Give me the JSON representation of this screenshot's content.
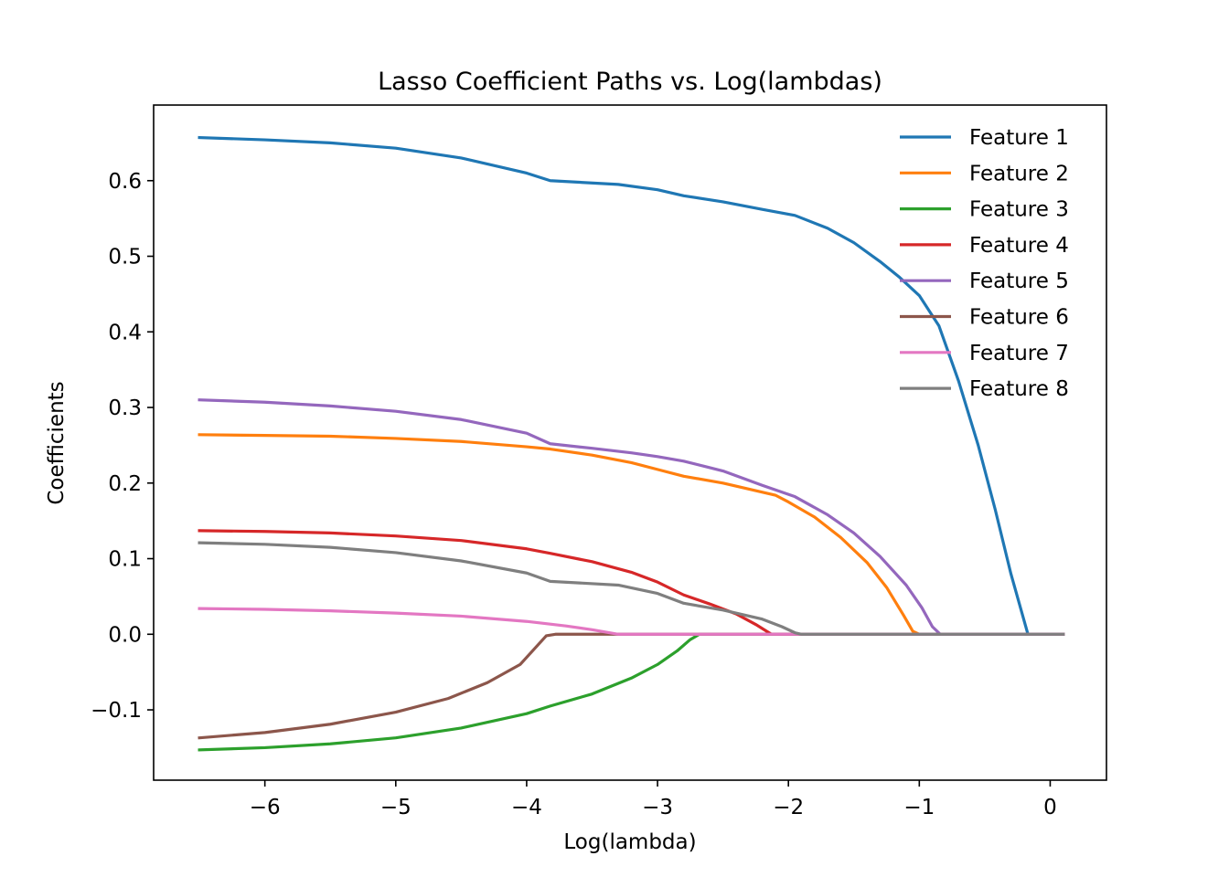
{
  "chart_data": {
    "type": "line",
    "title": "Lasso Coefficient Paths vs. Log(lambdas)",
    "xlabel": "Log(lambda)",
    "ylabel": "Coefficients",
    "xlim": [
      -6.85,
      0.43
    ],
    "ylim": [
      -0.193,
      0.7
    ],
    "xticks": [
      -6,
      -5,
      -4,
      -3,
      -2,
      -1,
      0
    ],
    "xtick_labels": [
      "−6",
      "−5",
      "−4",
      "−3",
      "−2",
      "−1",
      "0"
    ],
    "yticks": [
      -0.1,
      0.0,
      0.1,
      0.2,
      0.3,
      0.4,
      0.5,
      0.6
    ],
    "ytick_labels": [
      "−0.1",
      "0.0",
      "0.1",
      "0.2",
      "0.3",
      "0.4",
      "0.5",
      "0.6"
    ],
    "grid": false,
    "legend": "top-right",
    "series": [
      {
        "name": "Feature 1",
        "color": "#1f77b4",
        "points": [
          [
            -6.5,
            0.657
          ],
          [
            -6.0,
            0.654
          ],
          [
            -5.5,
            0.65
          ],
          [
            -5.0,
            0.643
          ],
          [
            -4.5,
            0.63
          ],
          [
            -4.0,
            0.61
          ],
          [
            -3.82,
            0.6
          ],
          [
            -3.3,
            0.595
          ],
          [
            -3.0,
            0.588
          ],
          [
            -2.8,
            0.58
          ],
          [
            -2.5,
            0.572
          ],
          [
            -2.2,
            0.562
          ],
          [
            -1.95,
            0.554
          ],
          [
            -1.7,
            0.537
          ],
          [
            -1.5,
            0.518
          ],
          [
            -1.3,
            0.493
          ],
          [
            -1.15,
            0.472
          ],
          [
            -1.0,
            0.448
          ],
          [
            -0.85,
            0.408
          ],
          [
            -0.7,
            0.335
          ],
          [
            -0.55,
            0.25
          ],
          [
            -0.42,
            0.165
          ],
          [
            -0.3,
            0.08
          ],
          [
            -0.17,
            0.0
          ],
          [
            0.1,
            0.0
          ]
        ]
      },
      {
        "name": "Feature 2",
        "color": "#ff7f0e",
        "points": [
          [
            -6.5,
            0.264
          ],
          [
            -6.0,
            0.263
          ],
          [
            -5.5,
            0.262
          ],
          [
            -5.0,
            0.259
          ],
          [
            -4.5,
            0.255
          ],
          [
            -4.0,
            0.248
          ],
          [
            -3.82,
            0.245
          ],
          [
            -3.5,
            0.237
          ],
          [
            -3.2,
            0.227
          ],
          [
            -3.0,
            0.218
          ],
          [
            -2.8,
            0.209
          ],
          [
            -2.5,
            0.2
          ],
          [
            -2.1,
            0.184
          ],
          [
            -2.0,
            0.175
          ],
          [
            -1.8,
            0.155
          ],
          [
            -1.6,
            0.128
          ],
          [
            -1.4,
            0.095
          ],
          [
            -1.25,
            0.062
          ],
          [
            -1.12,
            0.025
          ],
          [
            -1.05,
            0.004
          ],
          [
            -1.0,
            0.0
          ],
          [
            0.1,
            0.0
          ]
        ]
      },
      {
        "name": "Feature 3",
        "color": "#2ca02c",
        "points": [
          [
            -6.5,
            -0.153
          ],
          [
            -6.0,
            -0.15
          ],
          [
            -5.5,
            -0.145
          ],
          [
            -5.0,
            -0.137
          ],
          [
            -4.5,
            -0.124
          ],
          [
            -4.0,
            -0.105
          ],
          [
            -3.82,
            -0.095
          ],
          [
            -3.5,
            -0.079
          ],
          [
            -3.2,
            -0.058
          ],
          [
            -3.0,
            -0.04
          ],
          [
            -2.85,
            -0.022
          ],
          [
            -2.75,
            -0.007
          ],
          [
            -2.68,
            0.0
          ],
          [
            0.1,
            0.0
          ]
        ]
      },
      {
        "name": "Feature 4",
        "color": "#d62728",
        "points": [
          [
            -6.5,
            0.137
          ],
          [
            -6.0,
            0.136
          ],
          [
            -5.5,
            0.134
          ],
          [
            -5.0,
            0.13
          ],
          [
            -4.5,
            0.124
          ],
          [
            -4.0,
            0.113
          ],
          [
            -3.82,
            0.107
          ],
          [
            -3.5,
            0.096
          ],
          [
            -3.2,
            0.082
          ],
          [
            -3.0,
            0.069
          ],
          [
            -2.8,
            0.052
          ],
          [
            -2.6,
            0.04
          ],
          [
            -2.4,
            0.027
          ],
          [
            -2.25,
            0.013
          ],
          [
            -2.13,
            0.0
          ],
          [
            0.1,
            0.0
          ]
        ]
      },
      {
        "name": "Feature 5",
        "color": "#9467bd",
        "points": [
          [
            -6.5,
            0.31
          ],
          [
            -6.0,
            0.307
          ],
          [
            -5.5,
            0.302
          ],
          [
            -5.0,
            0.295
          ],
          [
            -4.5,
            0.284
          ],
          [
            -4.0,
            0.266
          ],
          [
            -3.82,
            0.252
          ],
          [
            -3.5,
            0.246
          ],
          [
            -3.2,
            0.24
          ],
          [
            -3.0,
            0.235
          ],
          [
            -2.8,
            0.229
          ],
          [
            -2.5,
            0.216
          ],
          [
            -2.2,
            0.197
          ],
          [
            -1.95,
            0.182
          ],
          [
            -1.7,
            0.158
          ],
          [
            -1.5,
            0.134
          ],
          [
            -1.3,
            0.103
          ],
          [
            -1.1,
            0.065
          ],
          [
            -0.98,
            0.035
          ],
          [
            -0.9,
            0.01
          ],
          [
            -0.84,
            0.0
          ],
          [
            0.1,
            0.0
          ]
        ]
      },
      {
        "name": "Feature 6",
        "color": "#8c564b",
        "points": [
          [
            -6.5,
            -0.137
          ],
          [
            -6.0,
            -0.13
          ],
          [
            -5.5,
            -0.119
          ],
          [
            -5.0,
            -0.103
          ],
          [
            -4.6,
            -0.085
          ],
          [
            -4.3,
            -0.064
          ],
          [
            -4.05,
            -0.04
          ],
          [
            -3.85,
            -0.002
          ],
          [
            -3.78,
            0.0
          ],
          [
            0.1,
            0.0
          ]
        ]
      },
      {
        "name": "Feature 7",
        "color": "#e377c2",
        "points": [
          [
            -6.5,
            0.034
          ],
          [
            -6.0,
            0.033
          ],
          [
            -5.5,
            0.031
          ],
          [
            -5.0,
            0.028
          ],
          [
            -4.5,
            0.024
          ],
          [
            -4.0,
            0.017
          ],
          [
            -3.7,
            0.011
          ],
          [
            -3.5,
            0.006
          ],
          [
            -3.3,
            0.0
          ],
          [
            0.1,
            0.0
          ]
        ]
      },
      {
        "name": "Feature 8",
        "color": "#7f7f7f",
        "points": [
          [
            -6.5,
            0.121
          ],
          [
            -6.0,
            0.119
          ],
          [
            -5.5,
            0.115
          ],
          [
            -5.0,
            0.108
          ],
          [
            -4.5,
            0.097
          ],
          [
            -4.0,
            0.081
          ],
          [
            -3.82,
            0.07
          ],
          [
            -3.3,
            0.065
          ],
          [
            -3.0,
            0.054
          ],
          [
            -2.8,
            0.041
          ],
          [
            -2.5,
            0.032
          ],
          [
            -2.2,
            0.02
          ],
          [
            -2.05,
            0.01
          ],
          [
            -1.95,
            0.002
          ],
          [
            -1.9,
            0.0
          ],
          [
            0.1,
            0.0
          ]
        ]
      }
    ]
  }
}
